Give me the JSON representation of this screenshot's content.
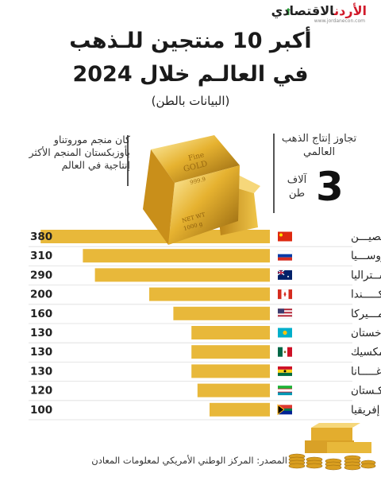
{
  "logo": {
    "name_red": "الأردن",
    "name_dark": "الاقتصادي",
    "url": "www.jordanecon.com"
  },
  "header": {
    "title_line1": "أكبر 10 منتجين للـذهب",
    "title_line2": "في العالـم خلال 2024",
    "subtitle": "(البيانات بالطن)"
  },
  "callouts": {
    "left_text": "كان منجم موروتناو بأوزبكستان المنجم الأكثر إنتاجية في العالم",
    "right_text": "تجاوز إنتاج الذهب العالمي",
    "right_number": "3",
    "right_unit": "آلاف طن"
  },
  "footer": {
    "source": "المصدر: المركز الوطني الأمريكي لمعلومات المعادن"
  },
  "colors": {
    "bar": "#e8b83a",
    "bar_light": "#f2cd63",
    "row_divider": "#dddddd"
  },
  "chart_data": {
    "type": "bar",
    "orientation": "horizontal",
    "unit": "طن",
    "categories": [
      "الصين",
      "روسيا",
      "أستراليا",
      "كندا",
      "أميركا",
      "كازاخستان",
      "المكسيك",
      "غانا",
      "أوزبكستان",
      "جنوب إفريقيا"
    ],
    "category_labels": [
      "الصيـــن",
      "روســـيا",
      "أســتراليا",
      "كـــــندا",
      "أمـــيركا",
      "كازاخستان",
      "المكسيك",
      "غـــــانا",
      "أوزبكـستان",
      "جنوب إفريقيا"
    ],
    "flags": [
      "china-flag",
      "russia-flag",
      "australia-flag",
      "canada-flag",
      "usa-flag",
      "kazakhstan-flag",
      "mexico-flag",
      "ghana-flag",
      "uzbekistan-flag",
      "south-africa-flag"
    ],
    "values": [
      380,
      310,
      290,
      200,
      160,
      130,
      130,
      130,
      120,
      100
    ],
    "xlim": [
      0,
      400
    ]
  }
}
